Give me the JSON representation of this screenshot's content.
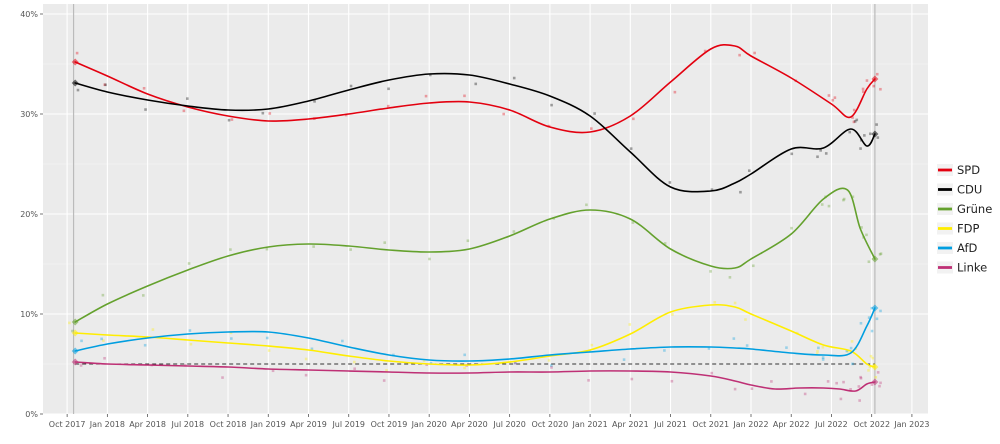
{
  "chart_data": {
    "type": "line",
    "title": "",
    "xlabel": "",
    "ylabel": "",
    "ylim": [
      0,
      41
    ],
    "y_tick_labels": [
      "0%",
      "10%",
      "20%",
      "30%",
      "40%"
    ],
    "y_ticks": [
      0,
      10,
      20,
      30,
      40
    ],
    "x_tick_labels": [
      "Oct 2017",
      "Jan 2018",
      "Apr 2018",
      "Jul 2018",
      "Oct 2018",
      "Jan 2019",
      "Apr 2019",
      "Jul 2019",
      "Oct 2019",
      "Jan 2020",
      "Apr 2020",
      "Jul 2020",
      "Oct 2020",
      "Jan 2021",
      "Apr 2021",
      "Jul 2021",
      "Oct 2021",
      "Jan 2022",
      "Apr 2022",
      "Jul 2022",
      "Oct 2022",
      "Jan 2023"
    ],
    "x_ticks": [
      2017.75,
      2018.0,
      2018.25,
      2018.5,
      2018.75,
      2019.0,
      2019.25,
      2019.5,
      2019.75,
      2020.0,
      2020.25,
      2020.5,
      2020.75,
      2021.0,
      2021.25,
      2021.5,
      2021.75,
      2022.0,
      2022.25,
      2022.5,
      2022.75,
      2023.0
    ],
    "xlim": [
      2017.6,
      2023.1
    ],
    "grid": true,
    "threshold": {
      "value": 5,
      "style": "dashed"
    },
    "election_markers": [
      2017.79,
      2022.77
    ],
    "legend_position": "right",
    "series": [
      {
        "name": "SPD",
        "color": "#e3000f",
        "x": [
          2017.8,
          2018.0,
          2018.25,
          2018.5,
          2018.75,
          2019.0,
          2019.25,
          2019.5,
          2019.75,
          2020.0,
          2020.25,
          2020.5,
          2020.75,
          2021.0,
          2021.25,
          2021.5,
          2021.75,
          2021.9,
          2022.0,
          2022.25,
          2022.5,
          2022.62,
          2022.72,
          2022.77
        ],
        "y": [
          35.2,
          33.8,
          32.0,
          30.7,
          29.8,
          29.3,
          29.5,
          30.0,
          30.6,
          31.1,
          31.2,
          30.4,
          28.7,
          28.2,
          29.8,
          33.2,
          36.5,
          36.8,
          35.8,
          33.6,
          31.0,
          29.7,
          32.5,
          33.5
        ]
      },
      {
        "name": "CDU",
        "color": "#000000",
        "x": [
          2017.8,
          2018.0,
          2018.25,
          2018.5,
          2018.75,
          2019.0,
          2019.25,
          2019.5,
          2019.75,
          2020.0,
          2020.25,
          2020.5,
          2020.75,
          2021.0,
          2021.25,
          2021.5,
          2021.75,
          2021.9,
          2022.0,
          2022.25,
          2022.45,
          2022.62,
          2022.72,
          2022.77
        ],
        "y": [
          33.1,
          32.2,
          31.4,
          30.8,
          30.4,
          30.5,
          31.3,
          32.4,
          33.4,
          34.0,
          33.9,
          33.0,
          31.8,
          29.8,
          26.2,
          22.7,
          22.3,
          23.1,
          24.0,
          26.5,
          26.6,
          28.5,
          26.8,
          28.0
        ]
      },
      {
        "name": "Grüne",
        "color": "#64a12d",
        "x": [
          2017.8,
          2018.0,
          2018.25,
          2018.5,
          2018.75,
          2019.0,
          2019.25,
          2019.5,
          2019.75,
          2020.0,
          2020.25,
          2020.5,
          2020.75,
          2021.0,
          2021.25,
          2021.5,
          2021.75,
          2021.9,
          2022.0,
          2022.25,
          2022.45,
          2022.6,
          2022.68,
          2022.77
        ],
        "y": [
          9.2,
          11.0,
          12.8,
          14.4,
          15.8,
          16.7,
          17.0,
          16.8,
          16.4,
          16.2,
          16.5,
          17.8,
          19.5,
          20.4,
          19.5,
          16.5,
          14.8,
          14.6,
          15.5,
          18.0,
          21.5,
          22.4,
          18.5,
          15.5
        ]
      },
      {
        "name": "FDP",
        "color": "#ffed00",
        "x": [
          2017.8,
          2018.0,
          2018.25,
          2018.5,
          2018.75,
          2019.0,
          2019.25,
          2019.5,
          2019.75,
          2020.0,
          2020.25,
          2020.5,
          2020.75,
          2021.0,
          2021.25,
          2021.5,
          2021.75,
          2021.9,
          2022.0,
          2022.25,
          2022.45,
          2022.62,
          2022.72,
          2022.77
        ],
        "y": [
          8.1,
          7.9,
          7.7,
          7.4,
          7.1,
          6.8,
          6.4,
          5.8,
          5.3,
          5.0,
          4.9,
          5.2,
          5.8,
          6.4,
          8.0,
          10.2,
          10.9,
          10.7,
          10.0,
          8.3,
          6.9,
          6.3,
          5.0,
          4.7
        ]
      },
      {
        "name": "AfD",
        "color": "#009ee0",
        "x": [
          2017.8,
          2018.0,
          2018.25,
          2018.5,
          2018.75,
          2019.0,
          2019.25,
          2019.5,
          2019.75,
          2020.0,
          2020.25,
          2020.5,
          2020.75,
          2021.0,
          2021.25,
          2021.5,
          2021.75,
          2021.9,
          2022.0,
          2022.25,
          2022.45,
          2022.62,
          2022.72,
          2022.77
        ],
        "y": [
          6.3,
          7.0,
          7.6,
          8.0,
          8.2,
          8.2,
          7.6,
          6.7,
          5.9,
          5.4,
          5.3,
          5.5,
          5.9,
          6.2,
          6.5,
          6.7,
          6.7,
          6.6,
          6.5,
          6.1,
          5.9,
          6.1,
          8.8,
          10.6
        ]
      },
      {
        "name": "Linke",
        "color": "#be3075",
        "x": [
          2017.8,
          2018.0,
          2018.25,
          2018.5,
          2018.75,
          2019.0,
          2019.25,
          2019.5,
          2019.75,
          2020.0,
          2020.25,
          2020.5,
          2020.75,
          2021.0,
          2021.25,
          2021.5,
          2021.75,
          2021.9,
          2022.0,
          2022.15,
          2022.3,
          2022.45,
          2022.55,
          2022.65,
          2022.72,
          2022.77
        ],
        "y": [
          5.2,
          5.0,
          4.9,
          4.8,
          4.7,
          4.5,
          4.4,
          4.3,
          4.2,
          4.1,
          4.1,
          4.2,
          4.2,
          4.3,
          4.3,
          4.2,
          3.8,
          3.3,
          2.9,
          2.5,
          2.6,
          2.6,
          2.5,
          2.3,
          3.0,
          3.2
        ]
      }
    ]
  }
}
